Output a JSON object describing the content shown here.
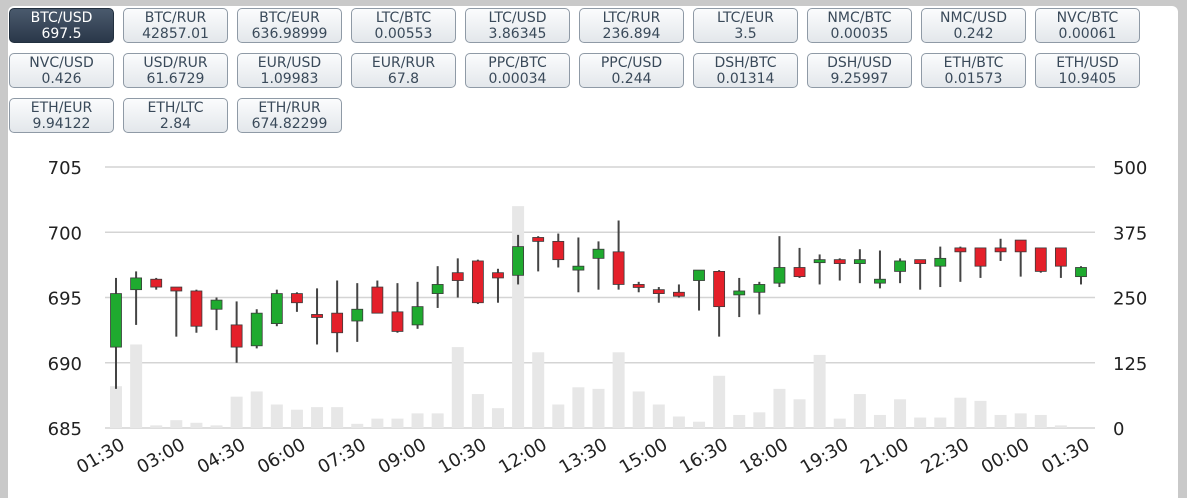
{
  "pairs": [
    {
      "name": "BTC/USD",
      "value": "697.5",
      "active": true
    },
    {
      "name": "BTC/RUR",
      "value": "42857.01"
    },
    {
      "name": "BTC/EUR",
      "value": "636.98999"
    },
    {
      "name": "LTC/BTC",
      "value": "0.00553"
    },
    {
      "name": "LTC/USD",
      "value": "3.86345"
    },
    {
      "name": "LTC/RUR",
      "value": "236.894"
    },
    {
      "name": "LTC/EUR",
      "value": "3.5"
    },
    {
      "name": "NMC/BTC",
      "value": "0.00035"
    },
    {
      "name": "NMC/USD",
      "value": "0.242"
    },
    {
      "name": "NVC/BTC",
      "value": "0.00061"
    },
    {
      "name": "NVC/USD",
      "value": "0.426"
    },
    {
      "name": "USD/RUR",
      "value": "61.6729"
    },
    {
      "name": "EUR/USD",
      "value": "1.09983"
    },
    {
      "name": "EUR/RUR",
      "value": "67.8"
    },
    {
      "name": "PPC/BTC",
      "value": "0.00034"
    },
    {
      "name": "PPC/USD",
      "value": "0.244"
    },
    {
      "name": "DSH/BTC",
      "value": "0.01314"
    },
    {
      "name": "DSH/USD",
      "value": "9.25997"
    },
    {
      "name": "ETH/BTC",
      "value": "0.01573"
    },
    {
      "name": "ETH/USD",
      "value": "10.9405"
    },
    {
      "name": "ETH/EUR",
      "value": "9.94122"
    },
    {
      "name": "ETH/LTC",
      "value": "2.84"
    },
    {
      "name": "ETH/RUR",
      "value": "674.82299"
    }
  ],
  "colors": {
    "up": "#1faa2f",
    "down": "#e4202a",
    "wick": "#444444",
    "volume": "#e7e7e7",
    "grid": "#d4d4d4",
    "active_button": "#2f3d50"
  },
  "chart_data": {
    "type": "candlestick",
    "price_axis": {
      "min": 685,
      "max": 705,
      "ticks": [
        705,
        700,
        695,
        690,
        685
      ]
    },
    "volume_axis": {
      "min": 0,
      "max": 500,
      "ticks": [
        500,
        375,
        250,
        125,
        0
      ]
    },
    "x_tick_labels": [
      "01:30",
      "03:00",
      "04:30",
      "06:00",
      "07:30",
      "09:00",
      "10:30",
      "12:00",
      "13:30",
      "15:00",
      "16:30",
      "18:00",
      "19:30",
      "21:00",
      "22:30",
      "00:00",
      "01:30"
    ],
    "candles": [
      {
        "o": 691.2,
        "h": 696.5,
        "l": 688.0,
        "c": 695.3,
        "v": 80
      },
      {
        "o": 695.6,
        "h": 697.0,
        "l": 692.9,
        "c": 696.5,
        "v": 160
      },
      {
        "o": 696.4,
        "h": 696.5,
        "l": 695.6,
        "c": 695.8,
        "v": 5
      },
      {
        "o": 695.8,
        "h": 695.8,
        "l": 692.0,
        "c": 695.5,
        "v": 15
      },
      {
        "o": 695.5,
        "h": 695.6,
        "l": 692.3,
        "c": 692.8,
        "v": 10
      },
      {
        "o": 694.1,
        "h": 695.0,
        "l": 692.5,
        "c": 694.8,
        "v": 5
      },
      {
        "o": 692.9,
        "h": 694.7,
        "l": 690.0,
        "c": 691.2,
        "v": 60
      },
      {
        "o": 691.3,
        "h": 694.1,
        "l": 691.1,
        "c": 693.8,
        "v": 70
      },
      {
        "o": 693.0,
        "h": 695.6,
        "l": 692.8,
        "c": 695.3,
        "v": 45
      },
      {
        "o": 695.3,
        "h": 695.4,
        "l": 693.9,
        "c": 694.6,
        "v": 35
      },
      {
        "o": 693.7,
        "h": 695.7,
        "l": 691.4,
        "c": 693.5,
        "v": 40
      },
      {
        "o": 693.8,
        "h": 696.3,
        "l": 690.8,
        "c": 692.3,
        "v": 40
      },
      {
        "o": 693.2,
        "h": 696.1,
        "l": 691.6,
        "c": 694.1,
        "v": 8
      },
      {
        "o": 695.8,
        "h": 696.3,
        "l": 693.8,
        "c": 693.8,
        "v": 18
      },
      {
        "o": 693.9,
        "h": 696.1,
        "l": 692.3,
        "c": 692.4,
        "v": 18
      },
      {
        "o": 692.9,
        "h": 696.2,
        "l": 692.6,
        "c": 694.3,
        "v": 28
      },
      {
        "o": 695.3,
        "h": 697.4,
        "l": 694.2,
        "c": 696.0,
        "v": 28
      },
      {
        "o": 696.9,
        "h": 698.0,
        "l": 695.0,
        "c": 696.3,
        "v": 155
      },
      {
        "o": 697.8,
        "h": 697.9,
        "l": 694.5,
        "c": 694.6,
        "v": 65
      },
      {
        "o": 696.9,
        "h": 697.2,
        "l": 694.6,
        "c": 696.5,
        "v": 38
      },
      {
        "o": 696.7,
        "h": 699.8,
        "l": 696.0,
        "c": 698.9,
        "v": 425
      },
      {
        "o": 699.6,
        "h": 699.7,
        "l": 697.0,
        "c": 699.3,
        "v": 145
      },
      {
        "o": 699.3,
        "h": 699.9,
        "l": 697.3,
        "c": 697.9,
        "v": 45
      },
      {
        "o": 697.1,
        "h": 699.6,
        "l": 695.4,
        "c": 697.4,
        "v": 78
      },
      {
        "o": 698.0,
        "h": 699.3,
        "l": 695.6,
        "c": 698.7,
        "v": 75
      },
      {
        "o": 698.5,
        "h": 700.9,
        "l": 695.6,
        "c": 696.0,
        "v": 145
      },
      {
        "o": 696.0,
        "h": 696.2,
        "l": 695.4,
        "c": 695.8,
        "v": 70
      },
      {
        "o": 695.6,
        "h": 695.8,
        "l": 694.6,
        "c": 695.3,
        "v": 45
      },
      {
        "o": 695.4,
        "h": 696.0,
        "l": 695.0,
        "c": 695.1,
        "v": 22
      },
      {
        "o": 696.3,
        "h": 697.0,
        "l": 694.0,
        "c": 697.1,
        "v": 12
      },
      {
        "o": 697.0,
        "h": 697.1,
        "l": 692.0,
        "c": 694.3,
        "v": 100
      },
      {
        "o": 695.2,
        "h": 696.5,
        "l": 693.5,
        "c": 695.5,
        "v": 25
      },
      {
        "o": 695.4,
        "h": 696.2,
        "l": 693.7,
        "c": 696.0,
        "v": 30
      },
      {
        "o": 696.1,
        "h": 699.7,
        "l": 695.8,
        "c": 697.3,
        "v": 75
      },
      {
        "o": 697.3,
        "h": 698.8,
        "l": 696.5,
        "c": 696.6,
        "v": 55
      },
      {
        "o": 697.7,
        "h": 698.3,
        "l": 696.0,
        "c": 697.9,
        "v": 140
      },
      {
        "o": 697.9,
        "h": 698.0,
        "l": 696.3,
        "c": 697.6,
        "v": 18
      },
      {
        "o": 697.6,
        "h": 698.7,
        "l": 696.1,
        "c": 697.9,
        "v": 65
      },
      {
        "o": 696.1,
        "h": 698.6,
        "l": 695.7,
        "c": 696.4,
        "v": 25
      },
      {
        "o": 697.0,
        "h": 698.0,
        "l": 696.1,
        "c": 697.8,
        "v": 55
      },
      {
        "o": 697.9,
        "h": 697.9,
        "l": 695.6,
        "c": 697.6,
        "v": 20
      },
      {
        "o": 697.4,
        "h": 698.9,
        "l": 695.8,
        "c": 698.0,
        "v": 20
      },
      {
        "o": 698.8,
        "h": 698.9,
        "l": 696.2,
        "c": 698.5,
        "v": 58
      },
      {
        "o": 698.8,
        "h": 698.8,
        "l": 696.5,
        "c": 697.4,
        "v": 52
      },
      {
        "o": 698.8,
        "h": 699.5,
        "l": 697.8,
        "c": 698.5,
        "v": 25
      },
      {
        "o": 699.4,
        "h": 699.4,
        "l": 696.6,
        "c": 698.5,
        "v": 28
      },
      {
        "o": 698.8,
        "h": 698.8,
        "l": 696.9,
        "c": 697.0,
        "v": 25
      },
      {
        "o": 698.8,
        "h": 698.8,
        "l": 696.5,
        "c": 697.4,
        "v": 5
      },
      {
        "o": 696.6,
        "h": 697.4,
        "l": 696.0,
        "c": 697.3,
        "v": 0
      }
    ]
  }
}
